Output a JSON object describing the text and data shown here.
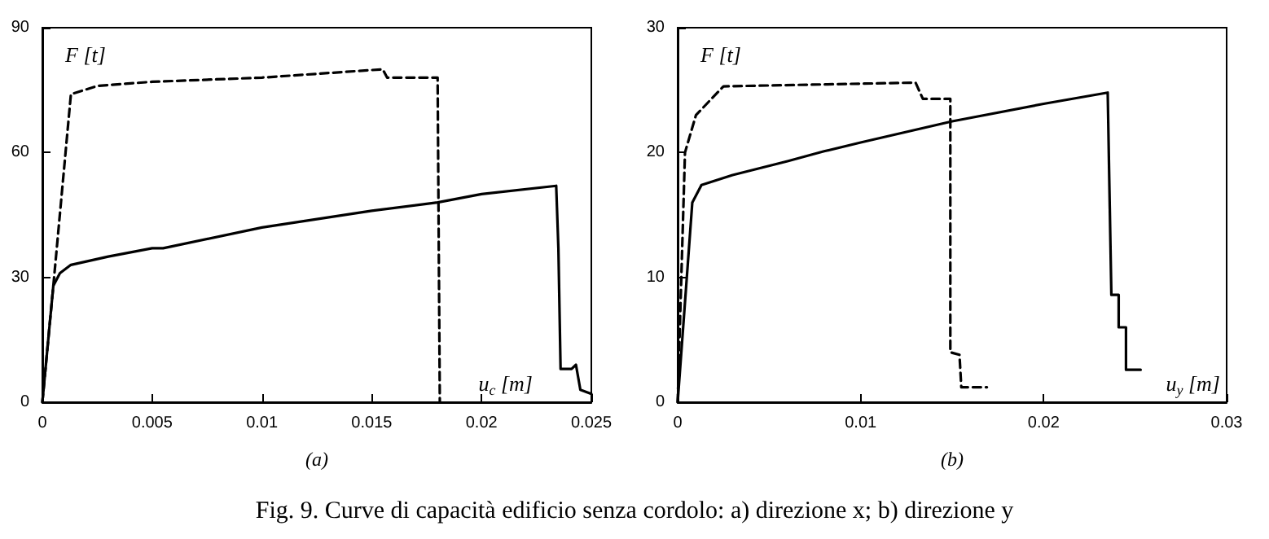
{
  "chart_data": [
    {
      "type": "line",
      "subtitle": "(a)",
      "xlabel": "u$_{c}$ [m]",
      "ylabel": "F [t]",
      "xlim": [
        0,
        0.025
      ],
      "xticks": [
        0,
        0.005,
        0.01,
        0.015,
        0.02,
        0.025
      ],
      "ylim": [
        0,
        90
      ],
      "yticks": [
        0,
        30,
        60,
        90
      ],
      "grid": false,
      "marker": "none",
      "annotations": [
        "Fig. 9. Curve di capacità edificio senza cordolo: a) direzione x; b) direzione y"
      ],
      "series": [
        {
          "color": "#000000",
          "line_style": "dashed",
          "x": [
            0,
            0.0005,
            0.0013,
            0.0025,
            0.005,
            0.01,
            0.0155,
            0.0157,
            0.018,
            0.0181
          ],
          "values": [
            0,
            28,
            74,
            76,
            77,
            78,
            80,
            78,
            78,
            0
          ]
        },
        {
          "color": "#000000",
          "line_style": "solid",
          "x": [
            0,
            0.0005,
            0.0008,
            0.0013,
            0.003,
            0.005,
            0.0055,
            0.01,
            0.015,
            0.018,
            0.02,
            0.0234,
            0.0235,
            0.0236,
            0.0241,
            0.0243,
            0.0245,
            0.025
          ],
          "values": [
            0,
            28,
            31,
            33,
            35,
            37,
            37,
            42,
            46,
            48,
            50,
            52,
            37,
            8,
            8,
            9,
            3,
            2
          ]
        }
      ]
    },
    {
      "type": "line",
      "subtitle": "(b)",
      "xlabel": "u$_{y}$ [m]",
      "ylabel": "F [t]",
      "xlim": [
        0,
        0.03
      ],
      "xticks": [
        0,
        0.01,
        0.02,
        0.03
      ],
      "ylim": [
        0,
        30
      ],
      "yticks": [
        0,
        10,
        20,
        30
      ],
      "grid": false,
      "marker": "none",
      "series": [
        {
          "color": "#000000",
          "line_style": "dashed",
          "x": [
            0,
            0.0002,
            0.0004,
            0.001,
            0.0025,
            0.013,
            0.0134,
            0.0149,
            0.0149,
            0.0154,
            0.0155,
            0.0169
          ],
          "values": [
            0,
            10,
            20,
            23,
            25.3,
            25.6,
            24.3,
            24.3,
            4,
            3.8,
            1.2,
            1.2
          ]
        },
        {
          "color": "#000000",
          "line_style": "solid",
          "x": [
            0,
            0.0005,
            0.0008,
            0.0013,
            0.003,
            0.006,
            0.008,
            0.01,
            0.015,
            0.02,
            0.0235,
            0.0237,
            0.0241,
            0.0241,
            0.0245,
            0.0245,
            0.0253
          ],
          "values": [
            0,
            10,
            16,
            17.4,
            18.2,
            19.3,
            20.1,
            20.8,
            22.5,
            23.9,
            24.8,
            8.6,
            8.6,
            6,
            6,
            2.6,
            2.6
          ]
        }
      ]
    }
  ]
}
